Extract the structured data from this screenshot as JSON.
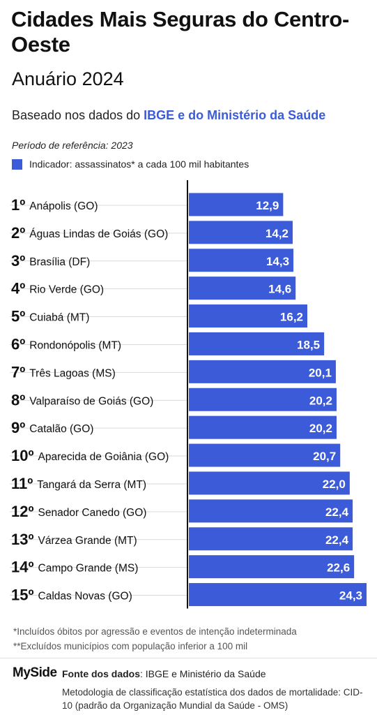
{
  "header": {
    "title": "Cidades Mais Seguras do Centro-Oeste",
    "subtitle": "Anuário 2024",
    "based_prefix": "Baseado nos dados do ",
    "based_highlight": "IBGE e do Ministério da Saúde",
    "period": "Período de referência: 2023",
    "legend_label": "Indicador: assassinatos* a cada 100 mil habitantes"
  },
  "colors": {
    "bar": "#3b5bd9",
    "axis": "#111111",
    "guide": "#d9d9d9"
  },
  "chart_data": {
    "type": "bar",
    "orientation": "horizontal",
    "xlim": [
      0,
      24.3
    ],
    "ranks": [
      "1º",
      "2º",
      "3º",
      "4º",
      "5º",
      "6º",
      "7º",
      "8º",
      "9º",
      "10º",
      "11º",
      "12º",
      "13º",
      "14º",
      "15º"
    ],
    "categories": [
      "Anápolis (GO)",
      "Águas Lindas de Goiás (GO)",
      "Brasília (DF)",
      "Rio Verde (GO)",
      "Cuiabá (MT)",
      "Rondonópolis (MT)",
      "Três Lagoas (MS)",
      "Valparaíso de Goiás (GO)",
      "Catalão (GO)",
      "Aparecida de Goiânia (GO)",
      "Tangará da Serra (MT)",
      "Senador Canedo (GO)",
      "Várzea Grande  (MT)",
      "Campo Grande (MS)",
      "Caldas Novas (GO)"
    ],
    "values": [
      12.9,
      14.2,
      14.3,
      14.6,
      16.2,
      18.5,
      20.1,
      20.2,
      20.2,
      20.7,
      22.0,
      22.4,
      22.4,
      22.6,
      24.3
    ],
    "value_labels": [
      "12,9",
      "14,2",
      "14,3",
      "14,6",
      "16,2",
      "18,5",
      "20,1",
      "20,2",
      "20,2",
      "20,7",
      "22,0",
      "22,4",
      "22,4",
      "22,6",
      "24,3"
    ]
  },
  "footer": {
    "note1": "*Incluídos óbitos por agressão e eventos de intenção indeterminada",
    "note2": "**Excluídos municípios com população inferior a 100 mil",
    "brand": "MySide",
    "source_label": "Fonte dos dados",
    "source_text": ": IBGE e Ministério da Saúde",
    "method": "Metodologia de classificação estatística dos dados de mortalidade: CID-10 (padrão da Organização Mundial da Saúde - OMS)"
  }
}
